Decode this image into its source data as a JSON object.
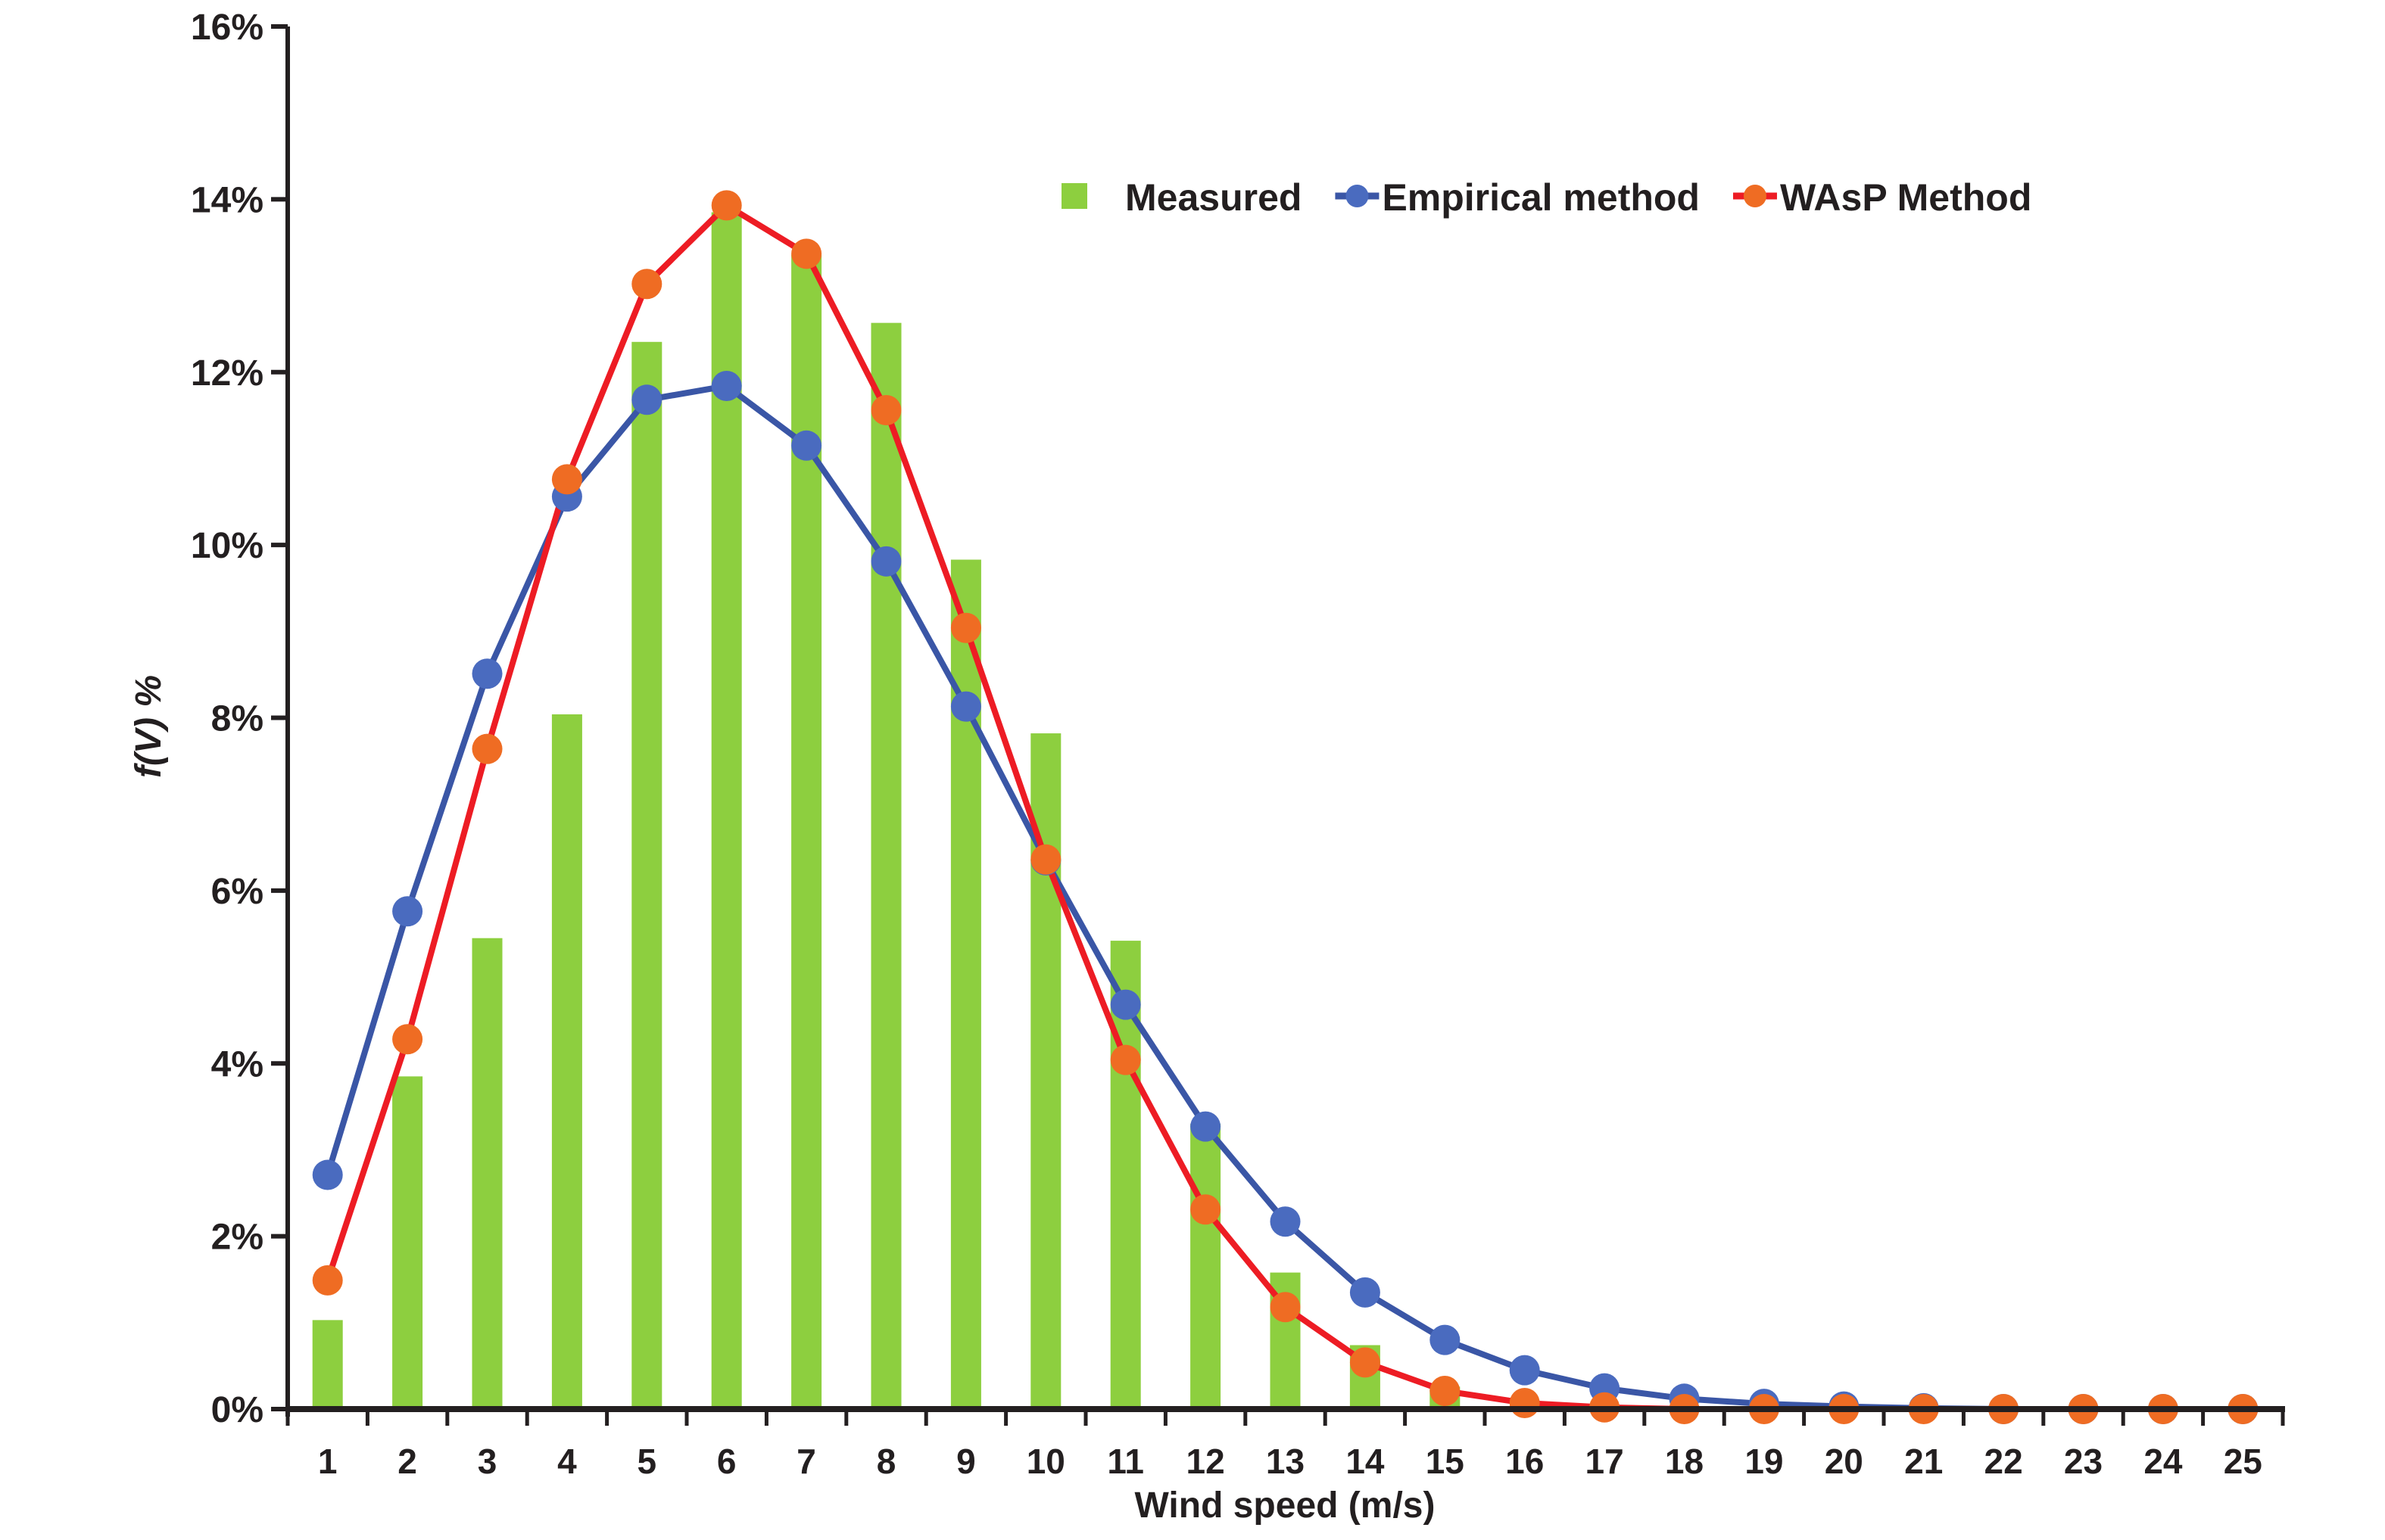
{
  "chart_data": {
    "type": "bar",
    "title": "",
    "xlabel": "Wind speed (m/s)",
    "ylabel": "f(V) %",
    "ylim": [
      0,
      16
    ],
    "yticks": [
      "0%",
      "2%",
      "4%",
      "6%",
      "8%",
      "10%",
      "12%",
      "14%",
      "16%"
    ],
    "ytick_values": [
      0,
      2,
      4,
      6,
      8,
      10,
      12,
      14,
      16
    ],
    "grid": false,
    "legend_position": "top-right",
    "categories": [
      "1",
      "2",
      "3",
      "4",
      "5",
      "6",
      "7",
      "8",
      "9",
      "10",
      "11",
      "12",
      "13",
      "14",
      "15",
      "16",
      "17",
      "18",
      "19",
      "20",
      "21",
      "22",
      "23",
      "24",
      "25"
    ],
    "series": [
      {
        "name": "Measured",
        "type": "bar",
        "color": "#8dcf3f",
        "values": [
          1.03,
          3.85,
          5.45,
          8.04,
          12.35,
          13.85,
          13.36,
          12.57,
          9.83,
          7.82,
          5.42,
          3.3,
          1.58,
          0.74,
          0.26,
          0,
          0,
          0,
          0,
          0,
          0,
          0,
          0,
          0,
          0
        ]
      },
      {
        "name": "Empirical method",
        "type": "line",
        "color": "#3a56a6",
        "marker_color": "#4a6bbf",
        "values": [
          2.71,
          5.76,
          8.51,
          10.56,
          11.68,
          11.84,
          11.15,
          9.81,
          8.13,
          6.35,
          4.68,
          3.27,
          2.17,
          1.35,
          0.8,
          0.45,
          0.24,
          0.12,
          0.06,
          0.03,
          0.01,
          0.0,
          0.0,
          0.0,
          0.0
        ]
      },
      {
        "name": "WAsP Method",
        "type": "line",
        "color": "#ed1c24",
        "marker_color": "#ef6c23",
        "values": [
          1.49,
          4.28,
          7.64,
          10.76,
          13.02,
          13.93,
          13.37,
          11.56,
          9.04,
          6.36,
          4.04,
          2.31,
          1.18,
          0.54,
          0.21,
          0.07,
          0.02,
          0.0,
          0.0,
          0.0,
          0.0,
          0.0,
          0.0,
          0.0,
          0.0
        ]
      }
    ]
  }
}
